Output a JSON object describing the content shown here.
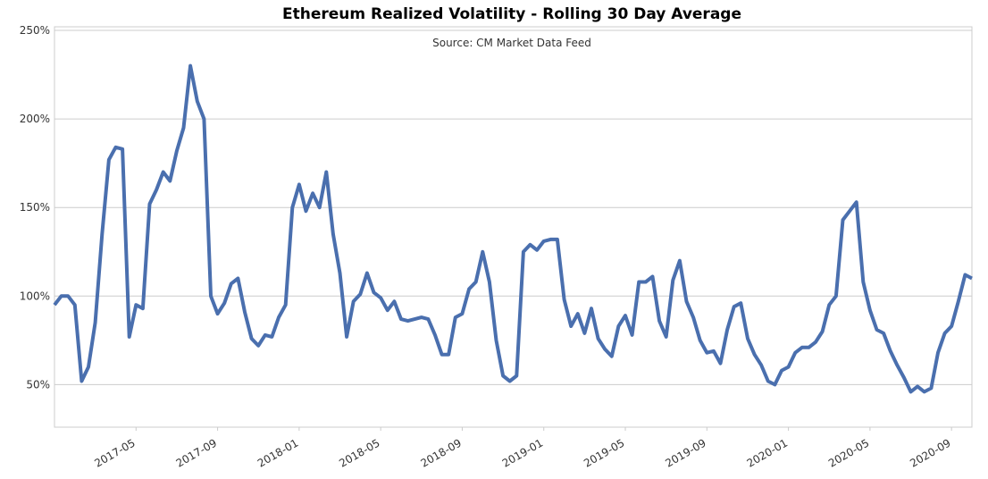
{
  "chart_data": {
    "type": "line",
    "title": "Ethereum Realized Volatility - Rolling 30 Day Average",
    "subtitle": "Source: CM Market Data Feed",
    "x": [
      "2017-01",
      "2017-01",
      "2017-01",
      "2017-02",
      "2017-02",
      "2017-02",
      "2017-03",
      "2017-03",
      "2017-03",
      "2017-04",
      "2017-04",
      "2017-04",
      "2017-05",
      "2017-05",
      "2017-05",
      "2017-06",
      "2017-06",
      "2017-06",
      "2017-07",
      "2017-07",
      "2017-07",
      "2017-08",
      "2017-08",
      "2017-08",
      "2017-09",
      "2017-09",
      "2017-09",
      "2017-10",
      "2017-10",
      "2017-10",
      "2017-11",
      "2017-11",
      "2017-11",
      "2017-12",
      "2017-12",
      "2017-12",
      "2018-01",
      "2018-01",
      "2018-01",
      "2018-02",
      "2018-02",
      "2018-02",
      "2018-03",
      "2018-03",
      "2018-03",
      "2018-04",
      "2018-04",
      "2018-04",
      "2018-05",
      "2018-05",
      "2018-05",
      "2018-06",
      "2018-06",
      "2018-06",
      "2018-07",
      "2018-07",
      "2018-07",
      "2018-08",
      "2018-08",
      "2018-08",
      "2018-09",
      "2018-09",
      "2018-09",
      "2018-10",
      "2018-10",
      "2018-10",
      "2018-11",
      "2018-11",
      "2018-11",
      "2018-12",
      "2018-12",
      "2018-12",
      "2019-01",
      "2019-01",
      "2019-01",
      "2019-02",
      "2019-02",
      "2019-02",
      "2019-03",
      "2019-03",
      "2019-03",
      "2019-04",
      "2019-04",
      "2019-04",
      "2019-05",
      "2019-05",
      "2019-05",
      "2019-06",
      "2019-06",
      "2019-06",
      "2019-07",
      "2019-07",
      "2019-07",
      "2019-08",
      "2019-08",
      "2019-08",
      "2019-09",
      "2019-09",
      "2019-09",
      "2019-10",
      "2019-10",
      "2019-10",
      "2019-11",
      "2019-11",
      "2019-11",
      "2019-12",
      "2019-12",
      "2019-12",
      "2020-01",
      "2020-01",
      "2020-01",
      "2020-02",
      "2020-02",
      "2020-02",
      "2020-03",
      "2020-03",
      "2020-03",
      "2020-04",
      "2020-04",
      "2020-04",
      "2020-05",
      "2020-05",
      "2020-05",
      "2020-06",
      "2020-06",
      "2020-06",
      "2020-07",
      "2020-07",
      "2020-07",
      "2020-08",
      "2020-08",
      "2020-08",
      "2020-09",
      "2020-09",
      "2020-09",
      "2020-10"
    ],
    "series": [
      {
        "color": "#4a6fae",
        "values": [
          95,
          100,
          100,
          95,
          52,
          60,
          85,
          135,
          177,
          184,
          183,
          77,
          95,
          93,
          152,
          160,
          170,
          165,
          182,
          195,
          230,
          210,
          200,
          100,
          90,
          96,
          107,
          110,
          91,
          76,
          72,
          78,
          77,
          88,
          95,
          150,
          163,
          148,
          158,
          150,
          170,
          135,
          113,
          77,
          97,
          101,
          113,
          102,
          99,
          92,
          97,
          87,
          86,
          87,
          88,
          87,
          78,
          67,
          67,
          88,
          90,
          104,
          108,
          125,
          108,
          75,
          55,
          52,
          55,
          125,
          129,
          126,
          131,
          132,
          132,
          98,
          83,
          90,
          79,
          93,
          76,
          70,
          66,
          83,
          89,
          78,
          108,
          108,
          111,
          86,
          77,
          109,
          120,
          97,
          88,
          75,
          68,
          69,
          62,
          81,
          94,
          96,
          76,
          67,
          61,
          52,
          50,
          58,
          60,
          68,
          71,
          71,
          74,
          80,
          95,
          100,
          143,
          148,
          153,
          108,
          92,
          81,
          79,
          69,
          61,
          54,
          46,
          49,
          46,
          48,
          68,
          79,
          83,
          97,
          112,
          110
        ]
      }
    ],
    "xlim": [
      "2017-01",
      "2020-10"
    ],
    "xticks": [
      "2017-05",
      "2017-09",
      "2018-01",
      "2018-05",
      "2018-09",
      "2019-01",
      "2019-05",
      "2019-09",
      "2020-01",
      "2020-05",
      "2020-09"
    ],
    "ylim": [
      26,
      252
    ],
    "yticks": [
      {
        "value": 50,
        "label": "50%"
      },
      {
        "value": 100,
        "label": "100%"
      },
      {
        "value": 150,
        "label": "150%"
      },
      {
        "value": 200,
        "label": "200%"
      },
      {
        "value": 250,
        "label": "250%"
      }
    ],
    "grid": true
  }
}
